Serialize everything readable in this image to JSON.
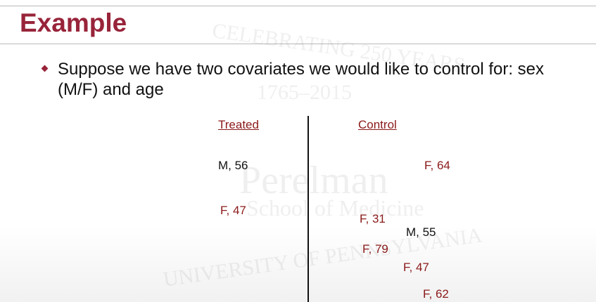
{
  "header": {
    "title": "Example"
  },
  "bullets": [
    "Suppose we have two covariates we would like to control for: sex (M/F) and age"
  ],
  "watermark": {
    "arc_top": "CELEBRATING 250 YEARS",
    "years": "1765–2015",
    "name": "Perelman",
    "school": "School of Medicine",
    "arc_bottom": "UNIVERSITY OF PENNSYLVANIA"
  },
  "groups": {
    "treated": {
      "label": "Treated",
      "subjects": [
        "M, 56",
        "F, 47"
      ]
    },
    "control": {
      "label": "Control",
      "subjects": [
        "F, 64",
        "F, 31",
        "M, 55",
        "F, 79",
        "F, 47",
        "F, 62"
      ]
    }
  }
}
